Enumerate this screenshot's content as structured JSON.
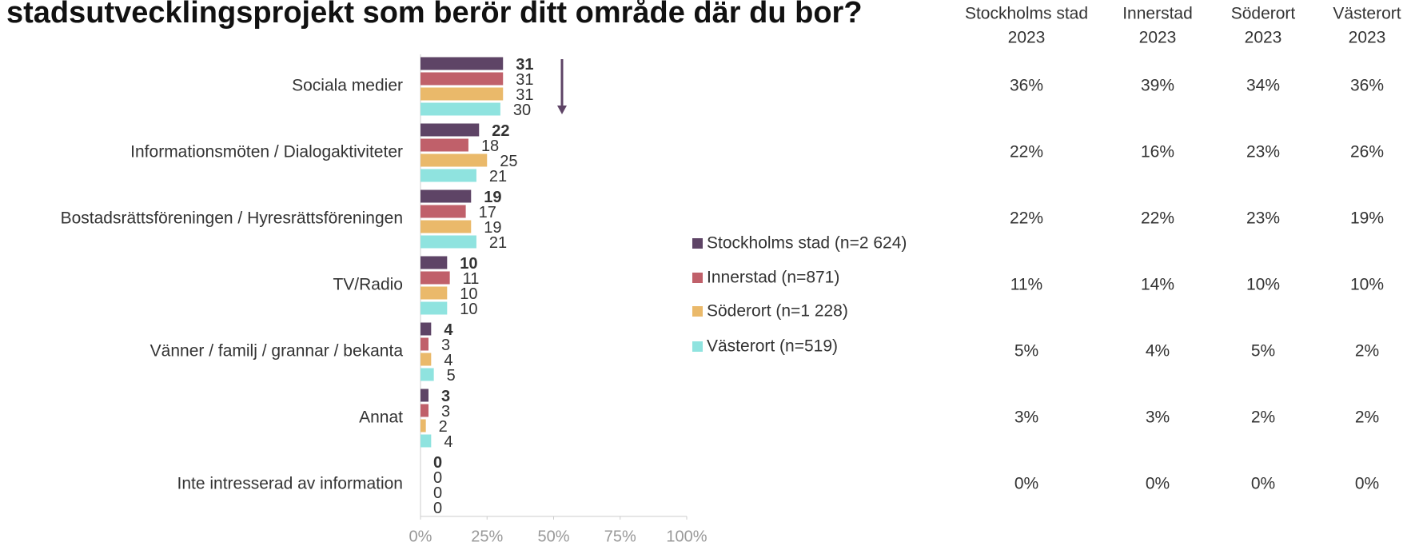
{
  "chart_data": {
    "type": "bar",
    "orientation": "horizontal",
    "title": "stadsutvecklingsprojekt som berör ditt område där du bor?",
    "categories": [
      "Sociala medier",
      "Informationsmöten / Dialogaktiviteter",
      "Bostadsrättsföreningen / Hyresrättsföreningen",
      "TV/Radio",
      "Vänner / familj / grannar / bekanta",
      "Annat",
      "Inte intresserad av information"
    ],
    "series": [
      {
        "name": "Stockholms stad (n=2 624)",
        "color": "#5e4466",
        "values": [
          31,
          22,
          19,
          10,
          4,
          3,
          0
        ]
      },
      {
        "name": "Innerstad (n=871)",
        "color": "#c0606a",
        "values": [
          31,
          18,
          17,
          11,
          3,
          3,
          0
        ]
      },
      {
        "name": "Söderort (n=1 228)",
        "color": "#eab96a",
        "values": [
          31,
          25,
          19,
          10,
          4,
          2,
          0
        ]
      },
      {
        "name": "Västerort (n=519)",
        "color": "#8fe3df",
        "values": [
          30,
          21,
          21,
          10,
          5,
          4,
          0
        ]
      }
    ],
    "xlim": [
      0,
      100
    ],
    "xticks": [
      {
        "value": 0,
        "label": "0%"
      },
      {
        "value": 25,
        "label": "25%"
      },
      {
        "value": 50,
        "label": "50%"
      },
      {
        "value": 75,
        "label": "75%"
      },
      {
        "value": 100,
        "label": "100%"
      }
    ],
    "legend": "right"
  },
  "table": {
    "columns": [
      {
        "name": "Stockholms stad",
        "year": "2023"
      },
      {
        "name": "Innerstad",
        "year": "2023"
      },
      {
        "name": "Söderort",
        "year": "2023"
      },
      {
        "name": "Västerort",
        "year": "2023"
      }
    ],
    "rows": [
      [
        "36%",
        "39%",
        "34%",
        "36%"
      ],
      [
        "22%",
        "16%",
        "23%",
        "26%"
      ],
      [
        "22%",
        "22%",
        "23%",
        "19%"
      ],
      [
        "11%",
        "14%",
        "10%",
        "10%"
      ],
      [
        "5%",
        "4%",
        "5%",
        "2%"
      ],
      [
        "3%",
        "3%",
        "2%",
        "2%"
      ],
      [
        "0%",
        "0%",
        "0%",
        "0%"
      ]
    ]
  }
}
